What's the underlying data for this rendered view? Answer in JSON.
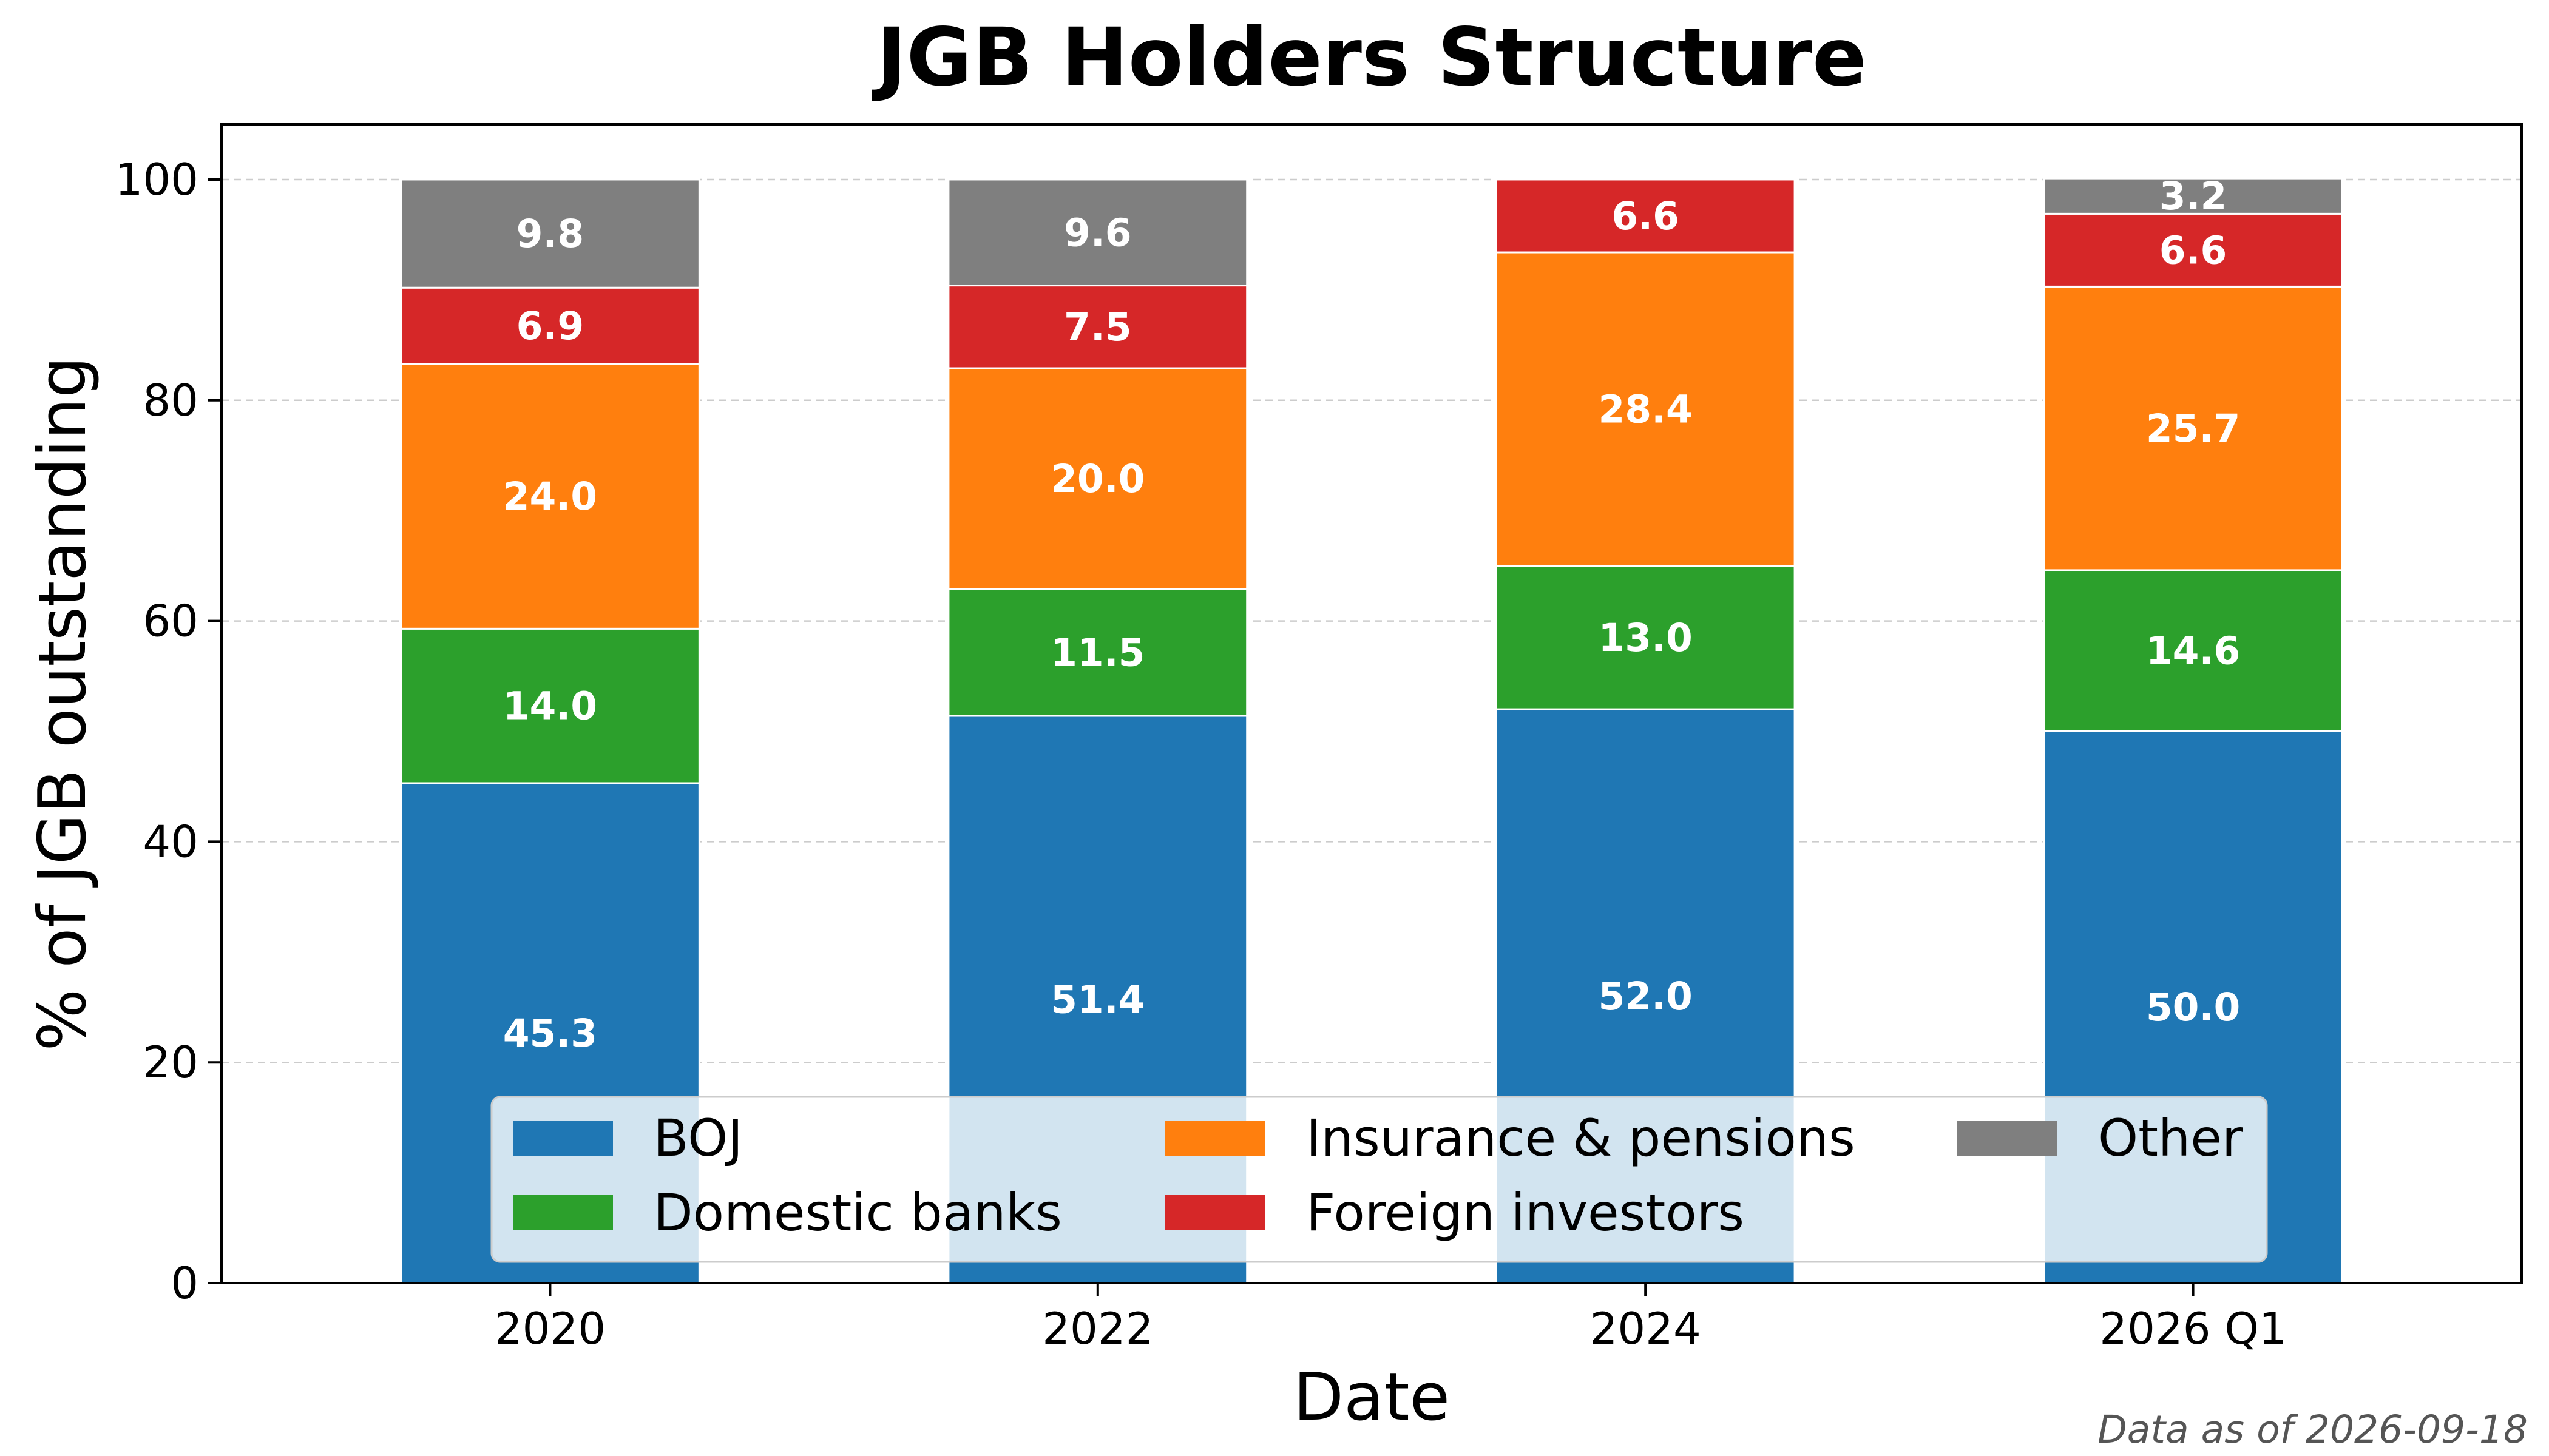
{
  "chart_data": {
    "type": "bar",
    "stacked": true,
    "title": "JGB Holders Structure",
    "xlabel": "Date",
    "ylabel": "% of JGB outstanding",
    "ylim": [
      0,
      105
    ],
    "yticks": [
      "0",
      "20",
      "40",
      "60",
      "80",
      "100"
    ],
    "ytick_values": [
      0,
      20,
      40,
      60,
      80,
      100
    ],
    "grid": "horizontal dashed",
    "legend_placement": "lower-center",
    "categories": [
      "2020",
      "2022",
      "2024",
      "2026 Q1"
    ],
    "series": [
      {
        "name": "BOJ",
        "color": "#1f77b4",
        "values": [
          45.3,
          51.4,
          52.0,
          50.0
        ],
        "labels": [
          "45.3",
          "51.4",
          "52.0",
          "50.0"
        ]
      },
      {
        "name": "Domestic banks",
        "color": "#2ca02c",
        "values": [
          14.0,
          11.5,
          13.0,
          14.6
        ],
        "labels": [
          "14.0",
          "11.5",
          "13.0",
          "14.6"
        ]
      },
      {
        "name": "Insurance & pensions",
        "color": "#ff7f0e",
        "values": [
          24.0,
          20.0,
          28.4,
          25.7
        ],
        "labels": [
          "24.0",
          "20.0",
          "28.4",
          "25.7"
        ]
      },
      {
        "name": "Foreign investors",
        "color": "#d62728",
        "values": [
          6.9,
          7.5,
          6.6,
          6.6
        ],
        "labels": [
          "6.9",
          "7.5",
          "6.6",
          "6.6"
        ]
      },
      {
        "name": "Other",
        "color": "#7f7f7f",
        "values": [
          9.8,
          9.6,
          0,
          3.2
        ],
        "labels": [
          "9.8",
          "9.6",
          "",
          "3.2"
        ]
      }
    ],
    "footnote": "Data as of 2026-09-18"
  }
}
